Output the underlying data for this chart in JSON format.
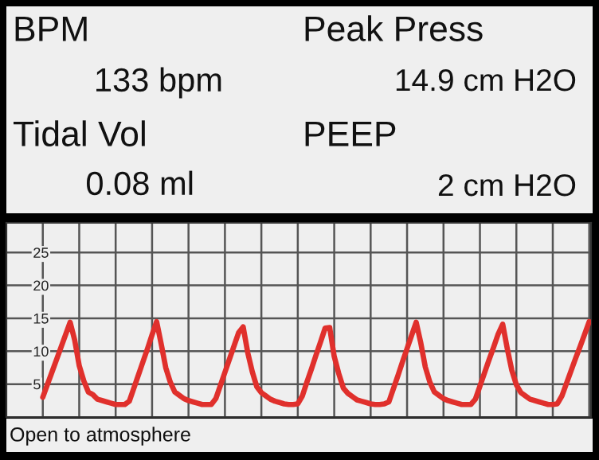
{
  "chart_data": {
    "type": "line",
    "annotations": [
      "BPM",
      "133 bpm",
      "Tidal Vol",
      "0.08 ml",
      "Peak Press",
      "14.9 cm H2O",
      "PEEP",
      "2 cm H2O",
      "Open to atmosphere"
    ],
    "categories": [
      null,
      null,
      null,
      null,
      null,
      null,
      null,
      null,
      null,
      null,
      null,
      null,
      null,
      null,
      null,
      null,
      null,
      null,
      null,
      null,
      null,
      null,
      null,
      null,
      null,
      null,
      null,
      null,
      null,
      null,
      null,
      null,
      null,
      null,
      null,
      null,
      null,
      null,
      null,
      null,
      null,
      null,
      null,
      null,
      null,
      null,
      null,
      null,
      null,
      null,
      null,
      null,
      null,
      null,
      null,
      null,
      null,
      null,
      null,
      null,
      null,
      null,
      null,
      null,
      null,
      null,
      null,
      null,
      null,
      null,
      null,
      null,
      null,
      null,
      null,
      null,
      null,
      null,
      null,
      null,
      null,
      null,
      null,
      null,
      null,
      null,
      null,
      null,
      null,
      null,
      null,
      null,
      null,
      null,
      null,
      null,
      null,
      null,
      null,
      null,
      null,
      null,
      null,
      null,
      null,
      null,
      null,
      null,
      null,
      null,
      null,
      null,
      null,
      null,
      null,
      null,
      null,
      null,
      null,
      null,
      null
    ],
    "series": [
      {
        "color": "#e0302c",
        "values": [
          3.0,
          4.9,
          6.8,
          8.7,
          10.6,
          12.5,
          14.4,
          11.7,
          7.8,
          5.5,
          3.8,
          3.4,
          2.7,
          2.5,
          2.3,
          2.1,
          1.9,
          1.9,
          1.9,
          2.4,
          4.4,
          6.4,
          8.4,
          10.4,
          12.5,
          14.5,
          11.1,
          7.5,
          5.3,
          3.8,
          3.3,
          2.8,
          2.5,
          2.3,
          2.1,
          1.9,
          1.9,
          1.9,
          2.8,
          4.8,
          6.8,
          8.8,
          10.8,
          12.8,
          13.7,
          9.8,
          6.9,
          4.6,
          3.7,
          3.2,
          2.7,
          2.4,
          2.2,
          2.0,
          1.9,
          1.9,
          2.0,
          3.2,
          5.3,
          7.3,
          9.4,
          11.4,
          13.5,
          13.6,
          9.2,
          6.6,
          4.4,
          3.6,
          3.1,
          2.6,
          2.4,
          2.2,
          2.0,
          1.9,
          1.9,
          2.0,
          2.3,
          4.3,
          6.3,
          8.4,
          10.4,
          12.4,
          14.4,
          11.3,
          7.6,
          5.3,
          3.8,
          3.3,
          2.8,
          2.5,
          2.3,
          2.1,
          1.9,
          1.9,
          1.9,
          2.7,
          4.7,
          6.7,
          8.7,
          10.6,
          12.6,
          14.1,
          10.4,
          7.1,
          4.9,
          3.7,
          3.2,
          2.7,
          2.5,
          2.3,
          2.1,
          1.9,
          1.9,
          2.0,
          3.2,
          5.1,
          7.0,
          8.9,
          10.7,
          12.6,
          14.5
        ]
      }
    ],
    "ylim": [
      0,
      29.5
    ],
    "yticks": [
      5,
      10,
      15,
      20,
      25
    ],
    "grid": true,
    "tick_labels": "y"
  }
}
